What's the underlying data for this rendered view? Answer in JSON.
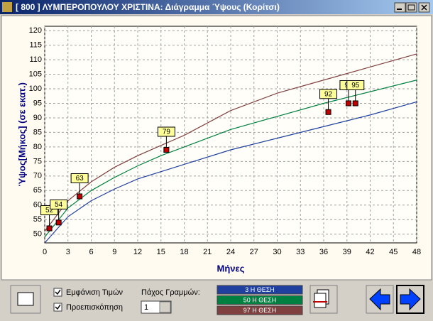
{
  "window": {
    "title": "[ 800 ] ΛΥΜΠΕΡΟΠΟΥΛΟΥ ΧΡΙΣΤΙΝΑ: Διάγραμμα Ύψους (Κορίτσι)"
  },
  "chart_data": {
    "type": "line",
    "x_label": "Μήνες",
    "y_label": "Ύψος[Μήκος] (σε εκατ.)",
    "xlim": [
      0,
      48
    ],
    "xticks": [
      0,
      3,
      6,
      9,
      12,
      15,
      18,
      21,
      24,
      27,
      30,
      33,
      36,
      39,
      42,
      45,
      48
    ],
    "ylim": [
      47,
      121.5
    ],
    "yticks": [
      50,
      55,
      60,
      65,
      70,
      75,
      80,
      85,
      90,
      95,
      100,
      105,
      110,
      115,
      120
    ],
    "grid": true,
    "series": [
      {
        "name": "3 Η ΘΕΣΗ",
        "color": "#2040a0",
        "x": [
          0,
          3,
          6,
          9,
          12,
          15,
          18,
          24,
          30,
          36,
          42,
          48
        ],
        "values": [
          47,
          56,
          61.5,
          65.5,
          69,
          71.5,
          74,
          79,
          83,
          87,
          91,
          95.5
        ]
      },
      {
        "name": "50 Η ΘΕΣΗ",
        "color": "#008040",
        "x": [
          0,
          3,
          6,
          9,
          12,
          15,
          18,
          24,
          30,
          36,
          42,
          48
        ],
        "values": [
          49,
          59,
          65,
          69.5,
          73.5,
          77,
          80,
          86,
          90.5,
          95,
          99,
          103
        ]
      },
      {
        "name": "97 Η ΘΕΣΗ",
        "color": "#804040",
        "x": [
          0,
          3,
          6,
          9,
          12,
          15,
          18,
          24,
          30,
          36,
          42,
          48
        ],
        "values": [
          51,
          61.5,
          68,
          73,
          77,
          80.5,
          84,
          92.5,
          98.5,
          103,
          107.5,
          112
        ]
      }
    ],
    "measurements": {
      "color": "#c00000",
      "x": [
        0.6,
        1.8,
        4.5,
        15.7,
        36.6,
        39.2,
        40.1
      ],
      "values": [
        52,
        54,
        63,
        79,
        92,
        95,
        95
      ]
    }
  },
  "controls": {
    "show_values": "Εμφάνιση Τιμών",
    "preview": "Προεπισκόπηση",
    "line_width_label": "Πάχος Γραμμών:",
    "line_width": 1
  }
}
